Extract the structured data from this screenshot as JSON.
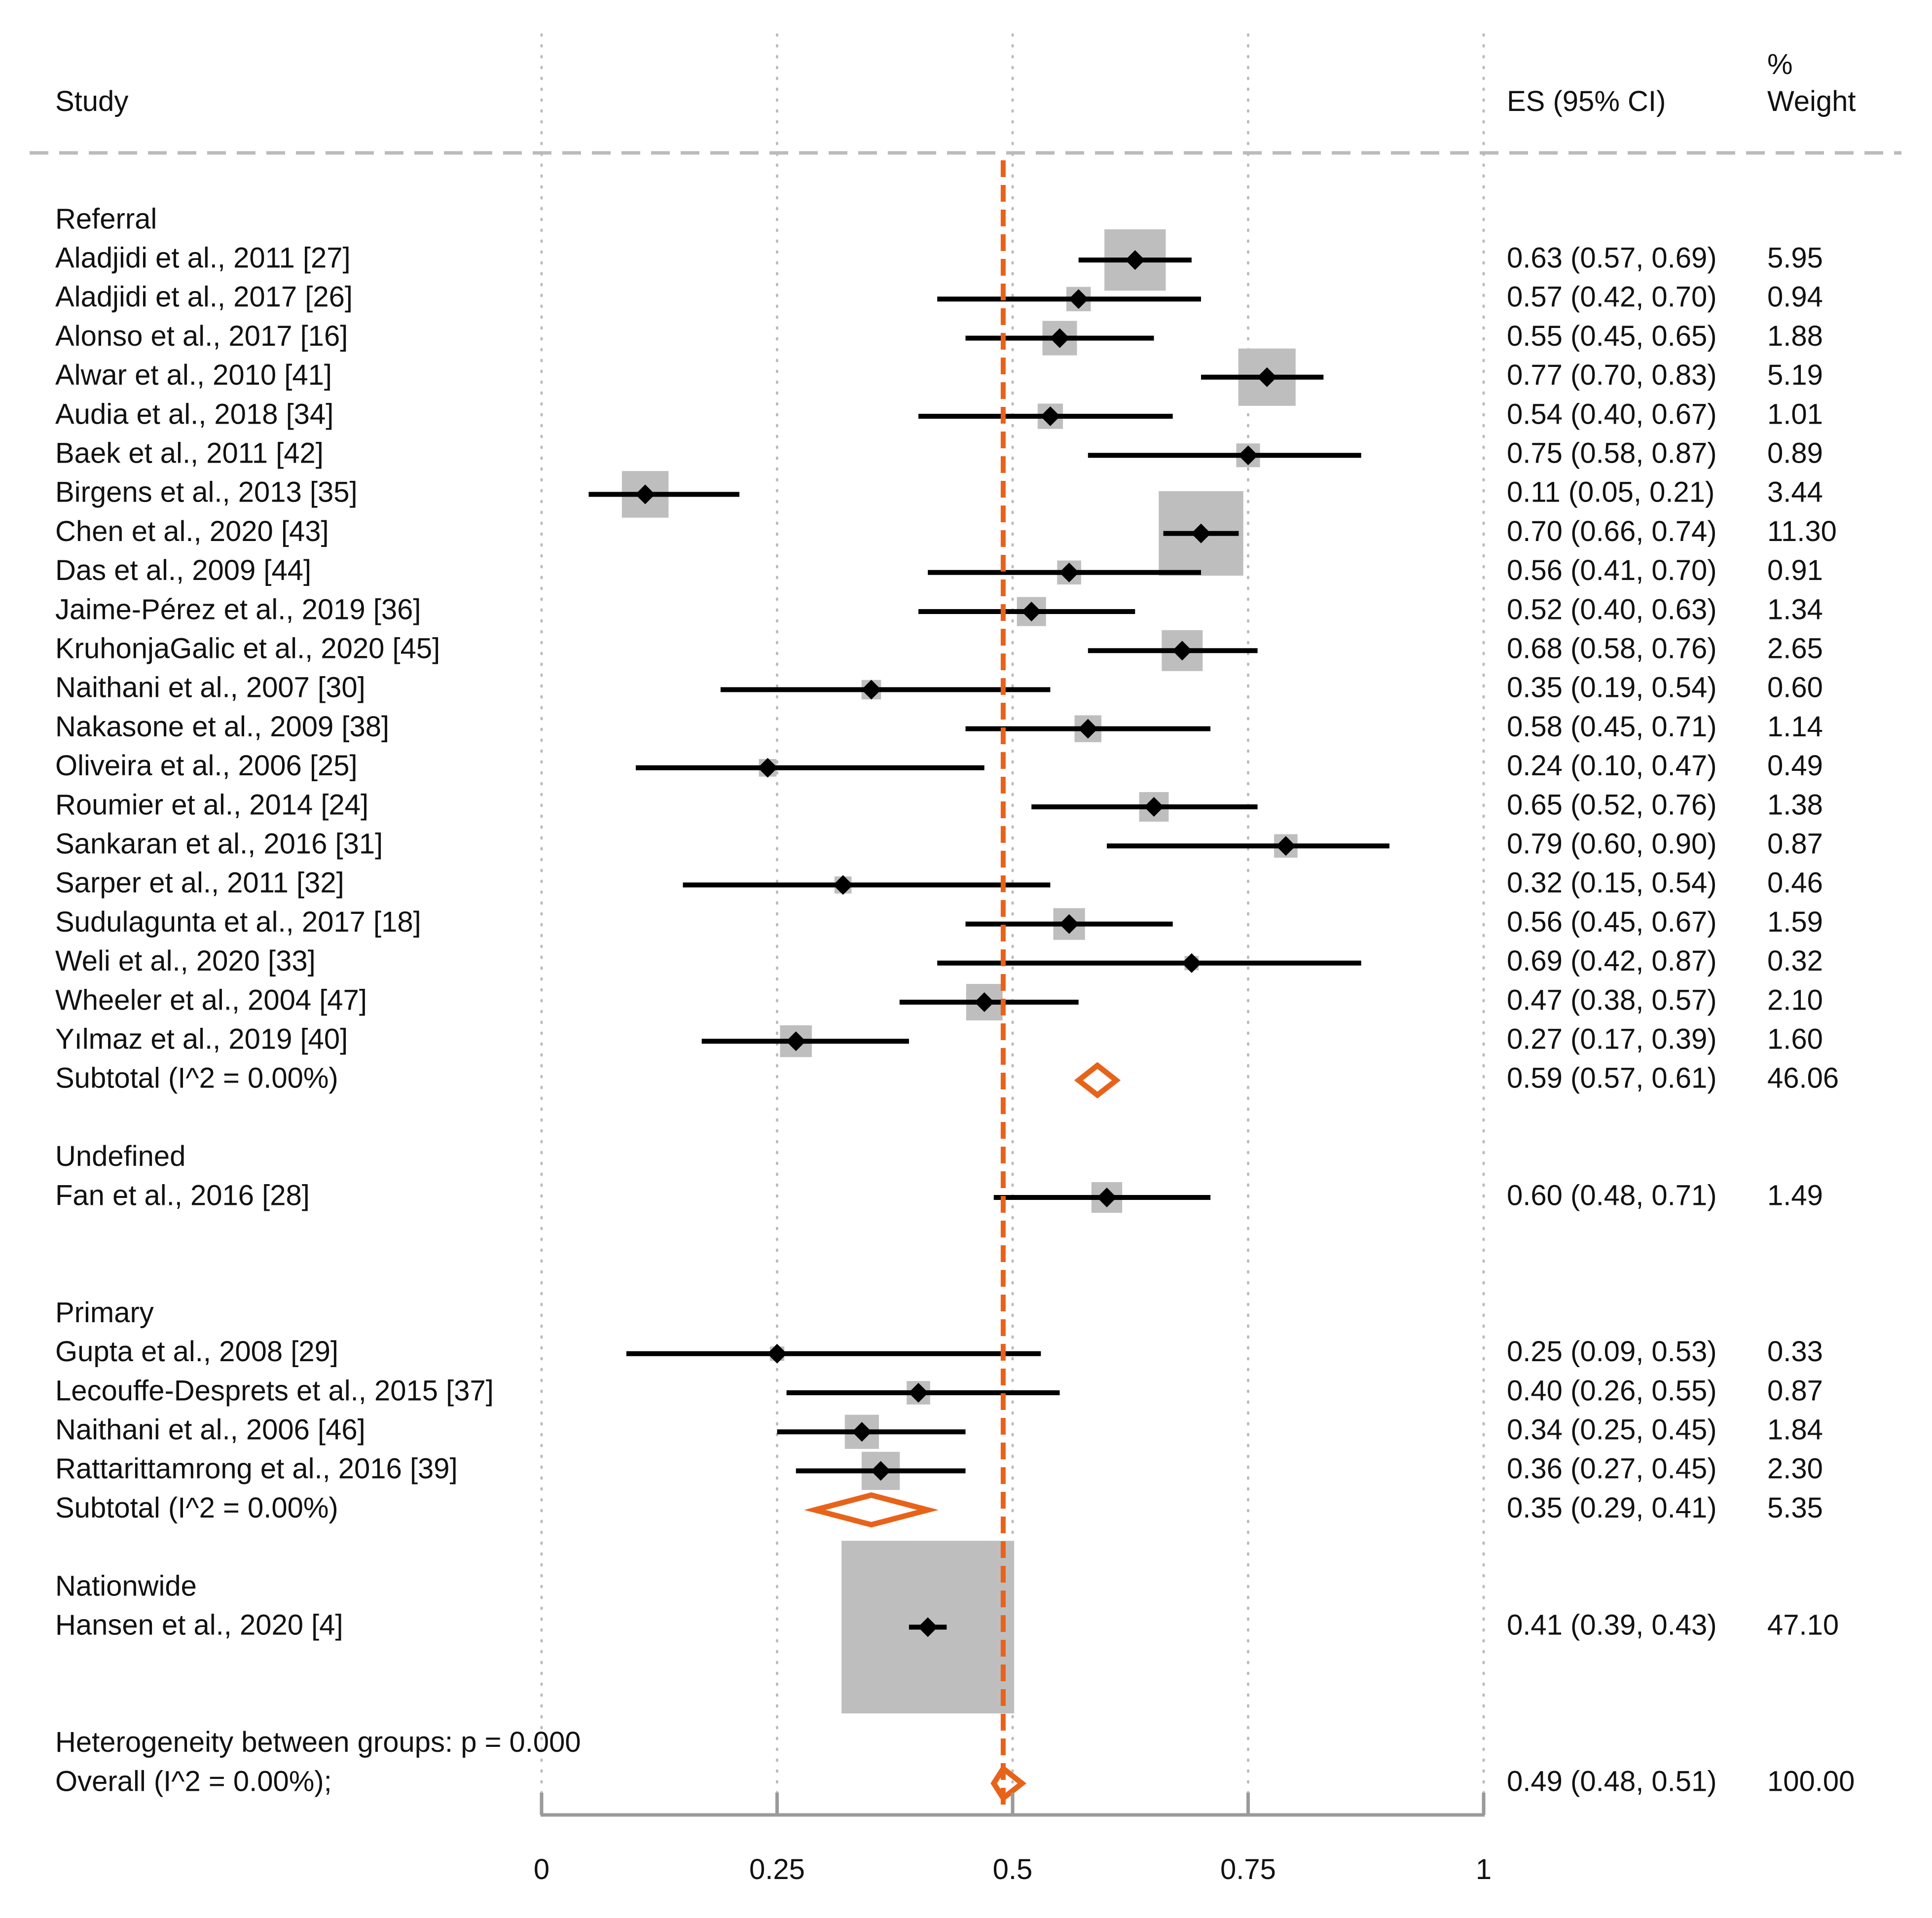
{
  "chart_data": {
    "type": "forest",
    "header": {
      "study": "Study",
      "es": "ES (95% CI)",
      "weight_line1": "%",
      "weight_line2": "Weight"
    },
    "x_axis": {
      "min": 0,
      "max": 1,
      "ticks": [
        0,
        0.25,
        0.5,
        0.75,
        1
      ],
      "tick_labels": [
        "0",
        "0.25",
        "0.5",
        "0.75",
        "1"
      ],
      "gridlines": "dotted"
    },
    "overall_line_value": 0.49,
    "colors": {
      "summary": "#E8631A",
      "box": "#BEBEBE",
      "point": "#000000",
      "axis": "#9A9A9A",
      "grid": "#BBBBBB",
      "header_rule": "#BBBBBB"
    },
    "rows": [
      {
        "type": "group",
        "label": "Referral"
      },
      {
        "type": "study",
        "label": "Aladjidi et al., 2011 [27]",
        "es": 0.63,
        "lo": 0.57,
        "hi": 0.69,
        "ci_text": "0.63 (0.57, 0.69)",
        "weight": 5.95,
        "weight_text": "5.95"
      },
      {
        "type": "study",
        "label": "Aladjidi et al., 2017 [26]",
        "es": 0.57,
        "lo": 0.42,
        "hi": 0.7,
        "ci_text": "0.57 (0.42, 0.70)",
        "weight": 0.94,
        "weight_text": "0.94"
      },
      {
        "type": "study",
        "label": "Alonso et al., 2017 [16]",
        "es": 0.55,
        "lo": 0.45,
        "hi": 0.65,
        "ci_text": "0.55 (0.45, 0.65)",
        "weight": 1.88,
        "weight_text": "1.88"
      },
      {
        "type": "study",
        "label": "Alwar et al., 2010 [41]",
        "es": 0.77,
        "lo": 0.7,
        "hi": 0.83,
        "ci_text": "0.77 (0.70, 0.83)",
        "weight": 5.19,
        "weight_text": "5.19"
      },
      {
        "type": "study",
        "label": "Audia et al., 2018 [34]",
        "es": 0.54,
        "lo": 0.4,
        "hi": 0.67,
        "ci_text": "0.54 (0.40, 0.67)",
        "weight": 1.01,
        "weight_text": "1.01"
      },
      {
        "type": "study",
        "label": "Baek et al., 2011 [42]",
        "es": 0.75,
        "lo": 0.58,
        "hi": 0.87,
        "ci_text": "0.75 (0.58, 0.87)",
        "weight": 0.89,
        "weight_text": "0.89"
      },
      {
        "type": "study",
        "label": "Birgens et al., 2013 [35]",
        "es": 0.11,
        "lo": 0.05,
        "hi": 0.21,
        "ci_text": "0.11 (0.05, 0.21)",
        "weight": 3.44,
        "weight_text": "3.44"
      },
      {
        "type": "study",
        "label": "Chen et al., 2020 [43]",
        "es": 0.7,
        "lo": 0.66,
        "hi": 0.74,
        "ci_text": "0.70 (0.66, 0.74)",
        "weight": 11.3,
        "weight_text": "11.30"
      },
      {
        "type": "study",
        "label": "Das et al., 2009 [44]",
        "es": 0.56,
        "lo": 0.41,
        "hi": 0.7,
        "ci_text": "0.56 (0.41, 0.70)",
        "weight": 0.91,
        "weight_text": "0.91"
      },
      {
        "type": "study",
        "label": "Jaime-Pérez et al., 2019 [36]",
        "es": 0.52,
        "lo": 0.4,
        "hi": 0.63,
        "ci_text": "0.52 (0.40, 0.63)",
        "weight": 1.34,
        "weight_text": "1.34"
      },
      {
        "type": "study",
        "label": "KruhonjaGalic et al., 2020 [45]",
        "es": 0.68,
        "lo": 0.58,
        "hi": 0.76,
        "ci_text": "0.68 (0.58, 0.76)",
        "weight": 2.65,
        "weight_text": "2.65"
      },
      {
        "type": "study",
        "label": "Naithani et al., 2007 [30]",
        "es": 0.35,
        "lo": 0.19,
        "hi": 0.54,
        "ci_text": "0.35 (0.19, 0.54)",
        "weight": 0.6,
        "weight_text": "0.60"
      },
      {
        "type": "study",
        "label": "Nakasone et al., 2009 [38]",
        "es": 0.58,
        "lo": 0.45,
        "hi": 0.71,
        "ci_text": "0.58 (0.45, 0.71)",
        "weight": 1.14,
        "weight_text": "1.14"
      },
      {
        "type": "study",
        "label": "Oliveira et al., 2006 [25]",
        "es": 0.24,
        "lo": 0.1,
        "hi": 0.47,
        "ci_text": "0.24 (0.10, 0.47)",
        "weight": 0.49,
        "weight_text": "0.49"
      },
      {
        "type": "study",
        "label": "Roumier et al., 2014 [24]",
        "es": 0.65,
        "lo": 0.52,
        "hi": 0.76,
        "ci_text": "0.65 (0.52, 0.76)",
        "weight": 1.38,
        "weight_text": "1.38"
      },
      {
        "type": "study",
        "label": "Sankaran et al., 2016 [31]",
        "es": 0.79,
        "lo": 0.6,
        "hi": 0.9,
        "ci_text": "0.79 (0.60, 0.90)",
        "weight": 0.87,
        "weight_text": "0.87"
      },
      {
        "type": "study",
        "label": "Sarper et al., 2011 [32]",
        "es": 0.32,
        "lo": 0.15,
        "hi": 0.54,
        "ci_text": "0.32 (0.15, 0.54)",
        "weight": 0.46,
        "weight_text": "0.46"
      },
      {
        "type": "study",
        "label": "Sudulagunta et al., 2017 [18]",
        "es": 0.56,
        "lo": 0.45,
        "hi": 0.67,
        "ci_text": "0.56 (0.45, 0.67)",
        "weight": 1.59,
        "weight_text": "1.59"
      },
      {
        "type": "study",
        "label": "Weli et al., 2020 [33]",
        "es": 0.69,
        "lo": 0.42,
        "hi": 0.87,
        "ci_text": "0.69 (0.42, 0.87)",
        "weight": 0.32,
        "weight_text": "0.32"
      },
      {
        "type": "study",
        "label": "Wheeler et al., 2004 [47]",
        "es": 0.47,
        "lo": 0.38,
        "hi": 0.57,
        "ci_text": "0.47 (0.38, 0.57)",
        "weight": 2.1,
        "weight_text": "2.10"
      },
      {
        "type": "study",
        "label": "Yılmaz et al., 2019 [40]",
        "es": 0.27,
        "lo": 0.17,
        "hi": 0.39,
        "ci_text": "0.27 (0.17, 0.39)",
        "weight": 1.6,
        "weight_text": "1.60"
      },
      {
        "type": "subtotal",
        "label": "Subtotal  (I^2 = 0.00%)",
        "es": 0.59,
        "lo": 0.57,
        "hi": 0.61,
        "ci_text": "0.59 (0.57, 0.61)",
        "weight": 46.06,
        "weight_text": "46.06"
      },
      {
        "type": "spacer"
      },
      {
        "type": "group",
        "label": "Undefined"
      },
      {
        "type": "study",
        "label": "Fan et al., 2016 [28]",
        "es": 0.6,
        "lo": 0.48,
        "hi": 0.71,
        "ci_text": "0.60 (0.48, 0.71)",
        "weight": 1.49,
        "weight_text": "1.49"
      },
      {
        "type": "spacer"
      },
      {
        "type": "spacer"
      },
      {
        "type": "group",
        "label": "Primary"
      },
      {
        "type": "study",
        "label": "Gupta et al., 2008 [29]",
        "es": 0.25,
        "lo": 0.09,
        "hi": 0.53,
        "ci_text": "0.25 (0.09, 0.53)",
        "weight": 0.33,
        "weight_text": "0.33"
      },
      {
        "type": "study",
        "label": "Lecouffe-Desprets et al., 2015 [37]",
        "es": 0.4,
        "lo": 0.26,
        "hi": 0.55,
        "ci_text": "0.40 (0.26, 0.55)",
        "weight": 0.87,
        "weight_text": "0.87"
      },
      {
        "type": "study",
        "label": "Naithani et al., 2006 [46]",
        "es": 0.34,
        "lo": 0.25,
        "hi": 0.45,
        "ci_text": "0.34 (0.25, 0.45)",
        "weight": 1.84,
        "weight_text": "1.84"
      },
      {
        "type": "study",
        "label": "Rattarittamrong et al., 2016 [39]",
        "es": 0.36,
        "lo": 0.27,
        "hi": 0.45,
        "ci_text": "0.36 (0.27, 0.45)",
        "weight": 2.3,
        "weight_text": "2.30"
      },
      {
        "type": "subtotal",
        "label": "Subtotal  (I^2 = 0.00%)",
        "es": 0.35,
        "lo": 0.29,
        "hi": 0.41,
        "ci_text": "0.35 (0.29, 0.41)",
        "weight": 5.35,
        "weight_text": "5.35"
      },
      {
        "type": "spacer"
      },
      {
        "type": "group",
        "label": "Nationwide"
      },
      {
        "type": "study",
        "label": "Hansen et al., 2020 [4]",
        "es": 0.41,
        "lo": 0.39,
        "hi": 0.43,
        "ci_text": "0.41 (0.39, 0.43)",
        "weight": 47.1,
        "weight_text": "47.10"
      },
      {
        "type": "spacer"
      },
      {
        "type": "spacer"
      },
      {
        "type": "note",
        "label": "Heterogeneity between groups: p = 0.000"
      },
      {
        "type": "overall",
        "label": "Overall  (I^2 = 0.00%);",
        "es": 0.49,
        "lo": 0.48,
        "hi": 0.51,
        "ci_text": "0.49 (0.48, 0.51)",
        "weight": 100.0,
        "weight_text": "100.00"
      }
    ]
  }
}
